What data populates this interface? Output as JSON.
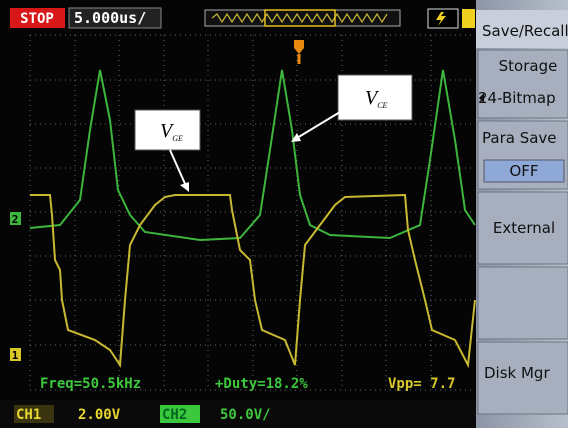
{
  "status": {
    "run_state": "STOP",
    "timebase": "5.000us/"
  },
  "menu": {
    "title": "Save/Recall",
    "items": [
      "Storage",
      "24-Bitmap",
      "Para Save",
      "OFF",
      "External",
      "Disk Mgr"
    ]
  },
  "measurements": [
    "Freq=50.5kHz",
    "+Duty=18.2%",
    "Vpp= 7.7"
  ],
  "channels": [
    {
      "name": "CH1",
      "scale": "2.00V"
    },
    {
      "name": "CH2",
      "scale": "50.0V/"
    }
  ],
  "markers": [
    "2",
    "1"
  ],
  "annotations": [
    {
      "main": "V",
      "sub": "GE"
    },
    {
      "main": "V",
      "sub": "CE"
    }
  ]
}
